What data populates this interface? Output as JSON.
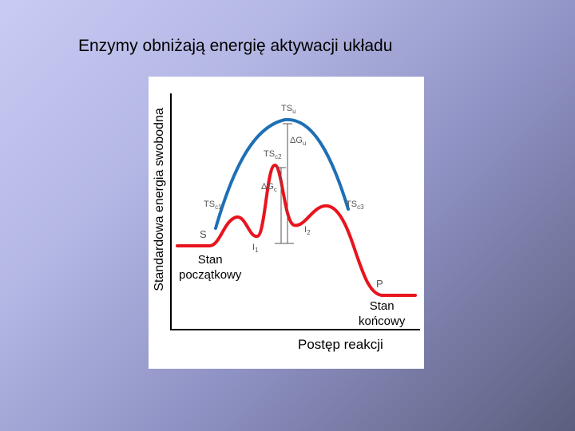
{
  "slide": {
    "title": "Enzymy obniżają energię aktywacji układu"
  },
  "diagram": {
    "y_axis_label": "Standardowa energia swobodna",
    "x_axis_label": "Postęp reakcji",
    "colors": {
      "uncatalyzed": "#1e6fb5",
      "catalyzed": "#e8141e",
      "axes": "#000000",
      "gray_text": "#555555"
    },
    "labels": {
      "ts_u": {
        "main": "TS",
        "sub": "u"
      },
      "dg_u": {
        "main": "ΔG",
        "sub": "u"
      },
      "ts_c2": {
        "main": "TS",
        "sub": "c2"
      },
      "dg_c": {
        "main": "ΔG",
        "sub": "c"
      },
      "ts_c1": {
        "main": "TS",
        "sub": "c1"
      },
      "ts_c3": {
        "main": "TS",
        "sub": "c3"
      },
      "s": "S",
      "i1": {
        "main": "I",
        "sub": "1"
      },
      "i2": {
        "main": "I",
        "sub": "2"
      },
      "p": "P"
    },
    "state_start": [
      "Stan",
      "początkowy"
    ],
    "state_end": [
      "Stan",
      "końcowy"
    ]
  }
}
